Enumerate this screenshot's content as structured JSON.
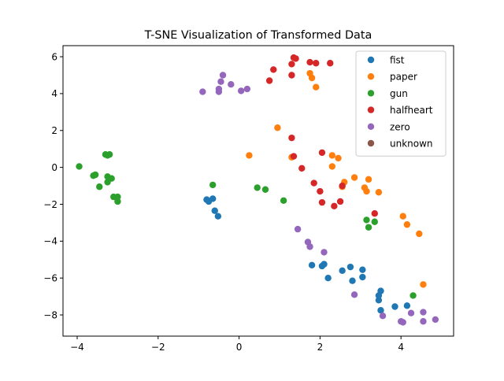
{
  "chart_data": {
    "type": "scatter",
    "title": "T-SNE Visualization of Transformed Data",
    "xlabel": "",
    "ylabel": "",
    "xlim": [
      -4.35,
      5.3
    ],
    "ylim": [
      -9.15,
      6.6
    ],
    "xticks": [
      -4,
      -2,
      0,
      2,
      4
    ],
    "yticks": [
      -8,
      -6,
      -4,
      -2,
      0,
      2,
      4,
      6
    ],
    "grid": false,
    "legend_position": "top-right",
    "series": [
      {
        "name": "fist",
        "color": "#1f77b4",
        "points": [
          [
            -0.8,
            -1.75
          ],
          [
            -0.75,
            -1.85
          ],
          [
            -0.65,
            -1.7
          ],
          [
            -0.6,
            -2.35
          ],
          [
            -0.52,
            -2.65
          ],
          [
            1.8,
            -5.3
          ],
          [
            2.05,
            -5.35
          ],
          [
            2.1,
            -5.25
          ],
          [
            2.2,
            -6.0
          ],
          [
            2.55,
            -5.6
          ],
          [
            2.75,
            -5.4
          ],
          [
            2.8,
            -6.15
          ],
          [
            3.05,
            -5.55
          ],
          [
            3.05,
            -5.95
          ],
          [
            3.45,
            -7.2
          ],
          [
            3.45,
            -6.95
          ],
          [
            3.5,
            -6.7
          ],
          [
            3.5,
            -7.75
          ],
          [
            3.85,
            -7.55
          ],
          [
            4.15,
            -7.5
          ]
        ]
      },
      {
        "name": "paper",
        "color": "#ff7f0e",
        "points": [
          [
            0.25,
            0.65
          ],
          [
            0.95,
            2.15
          ],
          [
            1.3,
            0.55
          ],
          [
            1.75,
            5.1
          ],
          [
            1.8,
            4.85
          ],
          [
            1.9,
            4.35
          ],
          [
            2.3,
            0.05
          ],
          [
            2.3,
            0.65
          ],
          [
            2.45,
            0.5
          ],
          [
            2.55,
            -1.05
          ],
          [
            2.6,
            -0.8
          ],
          [
            2.85,
            -0.55
          ],
          [
            3.1,
            -1.1
          ],
          [
            3.15,
            -1.3
          ],
          [
            3.2,
            -0.65
          ],
          [
            3.45,
            -1.35
          ],
          [
            4.05,
            -2.65
          ],
          [
            4.15,
            -3.1
          ],
          [
            4.45,
            -3.6
          ],
          [
            4.55,
            -6.35
          ]
        ]
      },
      {
        "name": "gun",
        "color": "#2ca02c",
        "points": [
          [
            -3.95,
            0.05
          ],
          [
            -3.6,
            -0.45
          ],
          [
            -3.55,
            -0.4
          ],
          [
            -3.45,
            -1.05
          ],
          [
            -3.3,
            0.7
          ],
          [
            -3.25,
            0.65
          ],
          [
            -3.2,
            0.7
          ],
          [
            -3.25,
            -0.5
          ],
          [
            -3.25,
            -0.8
          ],
          [
            -3.15,
            -0.6
          ],
          [
            -3.1,
            -1.6
          ],
          [
            -3.0,
            -1.85
          ],
          [
            -3.0,
            -1.6
          ],
          [
            -0.65,
            -0.95
          ],
          [
            0.45,
            -1.1
          ],
          [
            0.65,
            -1.2
          ],
          [
            1.1,
            -1.8
          ],
          [
            3.15,
            -2.85
          ],
          [
            3.2,
            -3.25
          ],
          [
            3.35,
            -2.95
          ],
          [
            4.3,
            -6.95
          ]
        ]
      },
      {
        "name": "halfheart",
        "color": "#d62728",
        "points": [
          [
            0.75,
            4.7
          ],
          [
            0.85,
            5.3
          ],
          [
            1.3,
            5.6
          ],
          [
            1.3,
            5.0
          ],
          [
            1.35,
            5.95
          ],
          [
            1.4,
            5.9
          ],
          [
            1.75,
            5.7
          ],
          [
            1.9,
            5.65
          ],
          [
            2.25,
            5.65
          ],
          [
            1.3,
            1.6
          ],
          [
            1.35,
            0.6
          ],
          [
            1.55,
            -0.05
          ],
          [
            1.85,
            -0.85
          ],
          [
            2.0,
            -1.3
          ],
          [
            2.05,
            0.8
          ],
          [
            2.05,
            -1.9
          ],
          [
            2.35,
            -2.1
          ],
          [
            2.5,
            -1.85
          ],
          [
            2.55,
            -1.0
          ],
          [
            3.35,
            -2.5
          ]
        ]
      },
      {
        "name": "zero",
        "color": "#9467bd",
        "points": [
          [
            -0.9,
            4.1
          ],
          [
            -0.5,
            4.1
          ],
          [
            -0.5,
            4.25
          ],
          [
            -0.45,
            4.65
          ],
          [
            -0.4,
            5.0
          ],
          [
            -0.2,
            4.5
          ],
          [
            0.05,
            4.15
          ],
          [
            0.2,
            4.25
          ],
          [
            1.45,
            -3.35
          ],
          [
            1.7,
            -4.05
          ],
          [
            1.75,
            -4.3
          ],
          [
            2.1,
            -4.6
          ],
          [
            2.85,
            -6.9
          ],
          [
            3.55,
            -8.05
          ],
          [
            4.0,
            -8.35
          ],
          [
            4.05,
            -8.4
          ],
          [
            4.25,
            -7.9
          ],
          [
            4.55,
            -7.85
          ],
          [
            4.55,
            -8.35
          ],
          [
            4.85,
            -8.25
          ]
        ]
      },
      {
        "name": "unknown",
        "color": "#8c564b",
        "points": []
      }
    ]
  }
}
